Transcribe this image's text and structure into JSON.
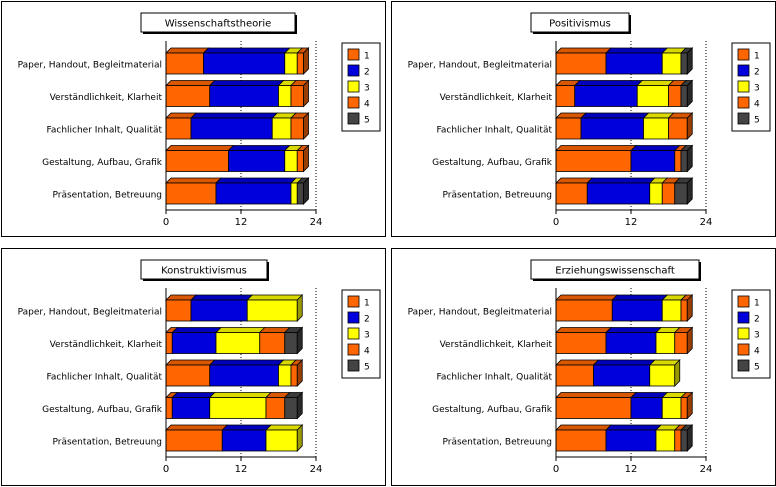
{
  "chart_data": [
    {
      "type": "bar",
      "stacked": true,
      "orientation": "horizontal",
      "title": "Wissenschaftstheorie",
      "categories": [
        "Paper, Handout, Begleitmaterial",
        "Verständlichkeit, Klarheit",
        "Fachlicher Inhalt, Qualität",
        "Gestaltung, Aufbau, Grafik",
        "Präsentation, Betreuung"
      ],
      "series": [
        {
          "name": "1",
          "color": "#ff6600",
          "values": [
            6,
            7,
            4,
            10,
            8
          ]
        },
        {
          "name": "2",
          "color": "#0000dd",
          "values": [
            13,
            11,
            13,
            9,
            12
          ]
        },
        {
          "name": "3",
          "color": "#ffff00",
          "values": [
            2,
            2,
            3,
            2,
            1
          ]
        },
        {
          "name": "4",
          "color": "#ff6600",
          "values": [
            1,
            2,
            2,
            1,
            0
          ]
        },
        {
          "name": "5",
          "color": "#444444",
          "values": [
            0,
            0,
            0,
            0,
            1
          ]
        }
      ],
      "xticks": [
        "0",
        "12",
        "24"
      ],
      "xlim": [
        0,
        24
      ],
      "legend": "right"
    },
    {
      "type": "bar",
      "stacked": true,
      "orientation": "horizontal",
      "title": "Positivismus",
      "categories": [
        "Paper, Handout, Begleitmaterial",
        "Verständlichkeit, Klarheit",
        "Fachlicher Inhalt, Qualität",
        "Gestaltung, Aufbau, Grafik",
        "Präsentation, Betreuung"
      ],
      "series": [
        {
          "name": "1",
          "color": "#ff6600",
          "values": [
            8,
            3,
            4,
            12,
            5
          ]
        },
        {
          "name": "2",
          "color": "#0000dd",
          "values": [
            9,
            10,
            10,
            7,
            10
          ]
        },
        {
          "name": "3",
          "color": "#ffff00",
          "values": [
            3,
            5,
            4,
            0,
            2
          ]
        },
        {
          "name": "4",
          "color": "#ff6600",
          "values": [
            0,
            2,
            3,
            1,
            2
          ]
        },
        {
          "name": "5",
          "color": "#444444",
          "values": [
            1,
            1,
            0,
            1,
            2
          ]
        }
      ],
      "xticks": [
        "0",
        "12",
        "24"
      ],
      "xlim": [
        0,
        24
      ],
      "legend": "right"
    },
    {
      "type": "bar",
      "stacked": true,
      "orientation": "horizontal",
      "title": "Konstruktivismus",
      "categories": [
        "Paper, Handout, Begleitmaterial",
        "Verständlichkeit, Klarheit",
        "Fachlicher Inhalt, Qualität",
        "Gestaltung, Aufbau, Grafik",
        "Präsentation, Betreuung"
      ],
      "series": [
        {
          "name": "1",
          "color": "#ff6600",
          "values": [
            4,
            1,
            7,
            1,
            9
          ]
        },
        {
          "name": "2",
          "color": "#0000dd",
          "values": [
            9,
            7,
            11,
            6,
            7
          ]
        },
        {
          "name": "3",
          "color": "#ffff00",
          "values": [
            8,
            7,
            2,
            9,
            5
          ]
        },
        {
          "name": "4",
          "color": "#ff6600",
          "values": [
            0,
            4,
            1,
            3,
            0
          ]
        },
        {
          "name": "5",
          "color": "#444444",
          "values": [
            0,
            2,
            0,
            2,
            0
          ]
        }
      ],
      "xticks": [
        "0",
        "12",
        "24"
      ],
      "xlim": [
        0,
        24
      ],
      "legend": "right"
    },
    {
      "type": "bar",
      "stacked": true,
      "orientation": "horizontal",
      "title": "Erziehungswissenschaft",
      "categories": [
        "Paper, Handout, Begleitmaterial",
        "Verständlichkeit, Klarheit",
        "Fachlicher Inhalt, Qualität",
        "Gestaltung, Aufbau, Grafik",
        "Präsentation, Betreuung"
      ],
      "series": [
        {
          "name": "1",
          "color": "#ff6600",
          "values": [
            9,
            8,
            6,
            12,
            8
          ]
        },
        {
          "name": "2",
          "color": "#0000dd",
          "values": [
            8,
            8,
            9,
            5,
            8
          ]
        },
        {
          "name": "3",
          "color": "#ffff00",
          "values": [
            3,
            3,
            4,
            3,
            3
          ]
        },
        {
          "name": "4",
          "color": "#ff6600",
          "values": [
            1,
            2,
            0,
            1,
            1
          ]
        },
        {
          "name": "5",
          "color": "#444444",
          "values": [
            0,
            0,
            0,
            0,
            1
          ]
        }
      ],
      "xticks": [
        "0",
        "12",
        "24"
      ],
      "xlim": [
        0,
        24
      ],
      "legend": "right"
    }
  ]
}
